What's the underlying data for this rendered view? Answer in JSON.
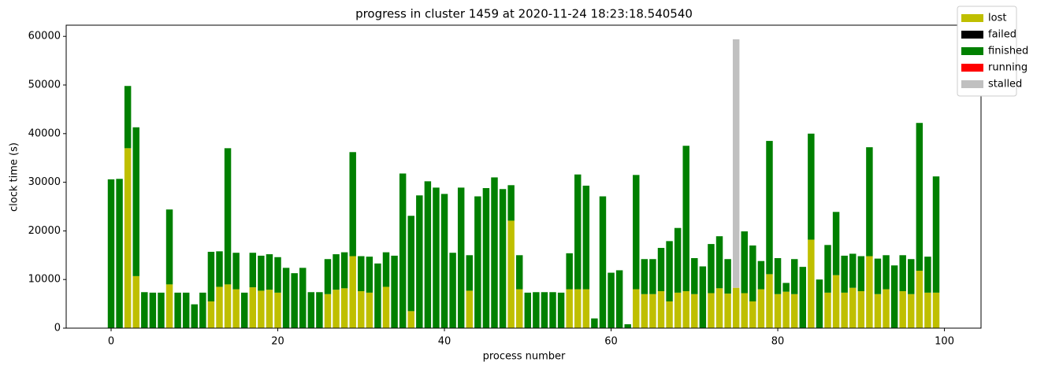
{
  "chart_data": {
    "type": "stacked_bar",
    "title": "progress in cluster 1459 at 2020-11-24 18:23:18.540540",
    "xlabel": "process number",
    "ylabel": "clock time (s)",
    "x": [
      0,
      1,
      2,
      3,
      4,
      5,
      6,
      7,
      8,
      9,
      10,
      11,
      12,
      13,
      14,
      15,
      16,
      17,
      18,
      19,
      20,
      21,
      22,
      23,
      24,
      25,
      26,
      27,
      28,
      29,
      30,
      31,
      32,
      33,
      34,
      35,
      36,
      37,
      38,
      39,
      40,
      41,
      42,
      43,
      44,
      45,
      46,
      47,
      48,
      49,
      50,
      51,
      52,
      53,
      54,
      55,
      56,
      57,
      58,
      59,
      60,
      61,
      62,
      63,
      64,
      65,
      66,
      67,
      68,
      69,
      70,
      71,
      72,
      73,
      74,
      75,
      76,
      77,
      78,
      79,
      80,
      81,
      82,
      83,
      84,
      85,
      86,
      87,
      88,
      89,
      90,
      91,
      92,
      93,
      94,
      95,
      96,
      97,
      98,
      99
    ],
    "series": [
      {
        "name": "lost",
        "color": "#bfbf00",
        "values": [
          0,
          0,
          37000,
          10700,
          0,
          0,
          0,
          9000,
          0,
          0,
          0,
          0,
          5500,
          8500,
          9000,
          8000,
          0,
          8400,
          7700,
          7900,
          7300,
          0,
          0,
          0,
          0,
          0,
          7000,
          7900,
          8200,
          14800,
          7600,
          7300,
          0,
          8500,
          0,
          0,
          3500,
          0,
          0,
          0,
          0,
          0,
          0,
          7700,
          0,
          0,
          0,
          0,
          22100,
          8000,
          0,
          0,
          0,
          0,
          0,
          8000,
          8000,
          8000,
          0,
          0,
          0,
          0,
          0,
          8000,
          7000,
          7000,
          7600,
          5500,
          7300,
          7600,
          7000,
          0,
          7200,
          8200,
          7100,
          8300,
          7200,
          5500,
          8000,
          11100,
          7000,
          7500,
          7000,
          0,
          18200,
          0,
          7300,
          10900,
          7300,
          8300,
          7600,
          14800,
          7000,
          8000,
          0,
          7600,
          7000,
          11800,
          7300,
          7300
        ]
      },
      {
        "name": "failed",
        "color": "#000000",
        "values": [
          0,
          0,
          0,
          0,
          0,
          0,
          0,
          0,
          0,
          0,
          0,
          0,
          0,
          0,
          0,
          0,
          0,
          0,
          0,
          0,
          0,
          0,
          0,
          0,
          0,
          0,
          0,
          0,
          0,
          0,
          0,
          0,
          0,
          0,
          0,
          0,
          0,
          0,
          0,
          0,
          0,
          0,
          0,
          0,
          0,
          0,
          0,
          0,
          0,
          0,
          0,
          0,
          0,
          0,
          0,
          0,
          0,
          0,
          0,
          0,
          0,
          0,
          0,
          0,
          0,
          0,
          0,
          0,
          0,
          0,
          0,
          0,
          0,
          0,
          0,
          0,
          0,
          0,
          0,
          0,
          0,
          0,
          0,
          0,
          0,
          0,
          0,
          0,
          0,
          0,
          0,
          0,
          0,
          0,
          0,
          0,
          0,
          0,
          0,
          0
        ]
      },
      {
        "name": "finished",
        "color": "#008000",
        "values": [
          30600,
          30700,
          12800,
          30600,
          7400,
          7300,
          7300,
          15400,
          7300,
          7300,
          4900,
          7300,
          10200,
          7300,
          28000,
          7500,
          7300,
          7100,
          7200,
          7300,
          7300,
          12400,
          11300,
          12400,
          7400,
          7400,
          7200,
          7300,
          7400,
          21400,
          7200,
          7400,
          13300,
          7100,
          14900,
          31800,
          19600,
          27300,
          30200,
          28900,
          27600,
          15500,
          28900,
          7300,
          27100,
          28800,
          31000,
          28600,
          7300,
          7000,
          7300,
          7400,
          7400,
          7400,
          7300,
          7400,
          23600,
          21300,
          2000,
          27100,
          11400,
          11900,
          800,
          23500,
          7200,
          7200,
          8900,
          12400,
          13300,
          29900,
          7400,
          12700,
          10100,
          10700,
          7100,
          0,
          12700,
          11500,
          5800,
          27400,
          7400,
          1800,
          7200,
          12600,
          21800,
          10000,
          9800,
          13000,
          7600,
          7000,
          7200,
          22400,
          7300,
          7000,
          12900,
          7400,
          7200,
          30400,
          7400,
          23900
        ]
      },
      {
        "name": "running",
        "color": "#ff0000",
        "values": [
          0,
          0,
          0,
          0,
          0,
          0,
          0,
          0,
          0,
          0,
          0,
          0,
          0,
          0,
          0,
          0,
          0,
          0,
          0,
          0,
          0,
          0,
          0,
          0,
          0,
          0,
          0,
          0,
          0,
          0,
          0,
          0,
          0,
          0,
          0,
          0,
          0,
          0,
          0,
          0,
          0,
          0,
          0,
          0,
          0,
          0,
          0,
          0,
          0,
          0,
          0,
          0,
          0,
          0,
          0,
          0,
          0,
          0,
          0,
          0,
          0,
          0,
          0,
          0,
          0,
          0,
          0,
          0,
          0,
          0,
          0,
          0,
          0,
          0,
          0,
          0,
          0,
          0,
          0,
          0,
          0,
          0,
          0,
          0,
          0,
          0,
          0,
          0,
          0,
          0,
          0,
          0,
          0,
          0,
          0,
          0,
          0,
          0,
          0,
          0
        ]
      },
      {
        "name": "stalled",
        "color": "#c0c0c0",
        "values": [
          0,
          0,
          0,
          0,
          0,
          0,
          0,
          0,
          0,
          0,
          0,
          0,
          0,
          0,
          0,
          0,
          0,
          0,
          0,
          0,
          0,
          0,
          0,
          0,
          0,
          0,
          0,
          0,
          0,
          0,
          0,
          0,
          0,
          0,
          0,
          0,
          0,
          0,
          0,
          0,
          0,
          0,
          0,
          0,
          0,
          0,
          0,
          0,
          0,
          0,
          0,
          0,
          0,
          0,
          0,
          0,
          0,
          0,
          0,
          0,
          0,
          0,
          0,
          0,
          0,
          0,
          0,
          0,
          0,
          0,
          0,
          0,
          0,
          0,
          0,
          51100,
          0,
          0,
          0,
          0,
          0,
          0,
          0,
          0,
          0,
          0,
          0,
          0,
          0,
          0,
          0,
          0,
          0,
          0,
          0,
          0,
          0,
          0,
          0,
          0
        ]
      }
    ],
    "xlim": [
      -5.39,
      104.39
    ],
    "xticks": [
      0,
      20,
      40,
      60,
      80,
      100
    ],
    "ylim": [
      0,
      62300
    ],
    "yticks": [
      0,
      10000,
      20000,
      30000,
      40000,
      50000,
      60000
    ],
    "bar_width": 0.8,
    "legend": "upper right"
  }
}
